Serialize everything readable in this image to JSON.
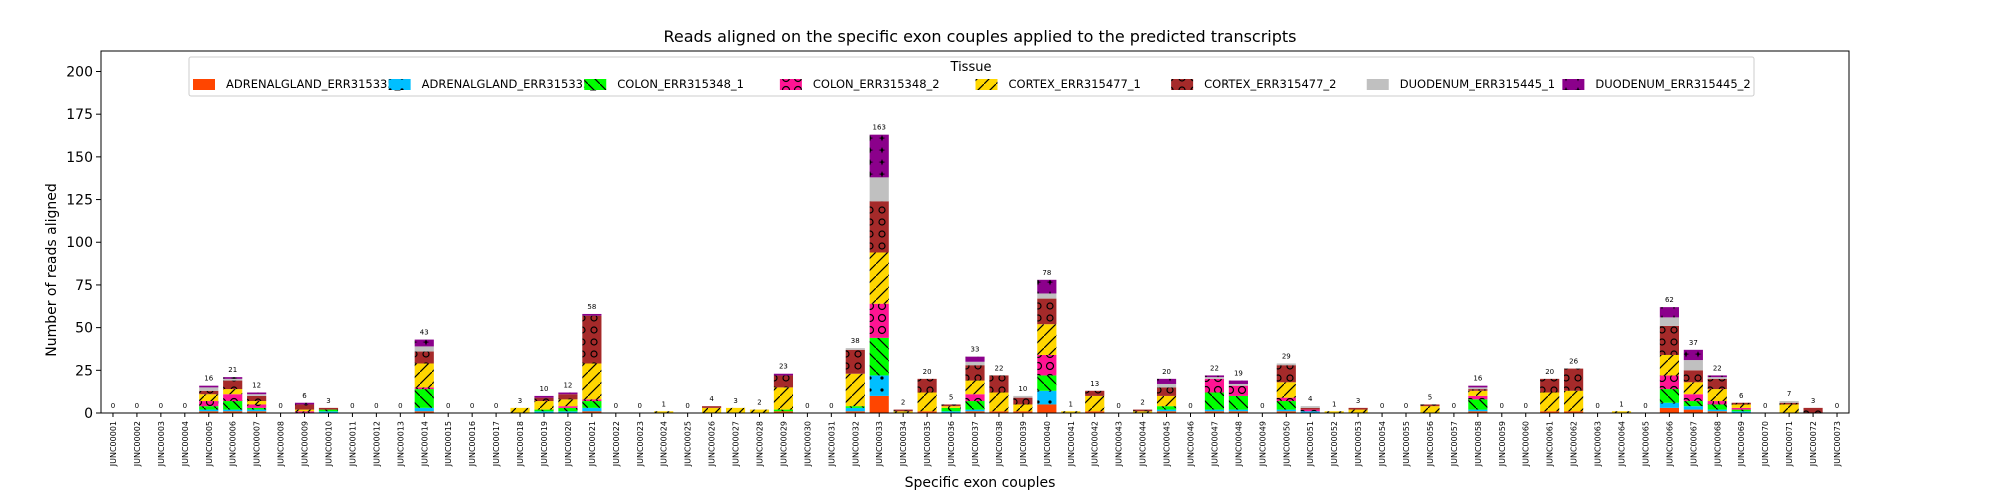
{
  "chart_data": {
    "type": "bar",
    "stacked": true,
    "title": "Reads aligned on the specific exon couples applied to the predicted transcripts",
    "xlabel": "Specific exon couples",
    "ylabel": "Number of reads aligned",
    "ylim": [
      0,
      212
    ],
    "yticks": [
      0,
      25,
      50,
      75,
      100,
      125,
      150,
      175,
      200
    ],
    "grid": false,
    "legend": {
      "title": "Tissue",
      "placement": "top",
      "columns": 8
    },
    "categories": [
      "JUNC00001",
      "JUNC00002",
      "JUNC00003",
      "JUNC00004",
      "JUNC00005",
      "JUNC00006",
      "JUNC00007",
      "JUNC00008",
      "JUNC00009",
      "JUNC00010",
      "JUNC00011",
      "JUNC00012",
      "JUNC00013",
      "JUNC00014",
      "JUNC00015",
      "JUNC00016",
      "JUNC00017",
      "JUNC00018",
      "JUNC00019",
      "JUNC00020",
      "JUNC00021",
      "JUNC00022",
      "JUNC00023",
      "JUNC00024",
      "JUNC00025",
      "JUNC00026",
      "JUNC00027",
      "JUNC00028",
      "JUNC00029",
      "JUNC00030",
      "JUNC00031",
      "JUNC00032",
      "JUNC00033",
      "JUNC00034",
      "JUNC00035",
      "JUNC00036",
      "JUNC00037",
      "JUNC00038",
      "JUNC00039",
      "JUNC00040",
      "JUNC00041",
      "JUNC00042",
      "JUNC00043",
      "JUNC00044",
      "JUNC00045",
      "JUNC00046",
      "JUNC00047",
      "JUNC00048",
      "JUNC00049",
      "JUNC00050",
      "JUNC00051",
      "JUNC00052",
      "JUNC00053",
      "JUNC00054",
      "JUNC00055",
      "JUNC00056",
      "JUNC00057",
      "JUNC00058",
      "JUNC00059",
      "JUNC00060",
      "JUNC00061",
      "JUNC00062",
      "JUNC00063",
      "JUNC00064",
      "JUNC00065",
      "JUNC00066",
      "JUNC00067",
      "JUNC00068",
      "JUNC00069",
      "JUNC00070",
      "JUNC00071",
      "JUNC00072",
      "JUNC00073"
    ],
    "totals": [
      0,
      0,
      0,
      0,
      16,
      21,
      12,
      0,
      6,
      3,
      0,
      0,
      0,
      43,
      0,
      0,
      0,
      3,
      10,
      12,
      58,
      0,
      0,
      1,
      0,
      4,
      3,
      2,
      23,
      0,
      0,
      38,
      163,
      2,
      20,
      5,
      33,
      22,
      10,
      78,
      1,
      13,
      0,
      2,
      20,
      0,
      22,
      19,
      0,
      29,
      4,
      1,
      3,
      0,
      0,
      5,
      0,
      16,
      0,
      0,
      20,
      26,
      0,
      1,
      0,
      62,
      37,
      22,
      6,
      0,
      7,
      3,
      0
    ],
    "series": [
      {
        "name": "ADRENALGLAND_ERR315335_1",
        "color": "#ff4500",
        "hatch": "none",
        "values": [
          0,
          0,
          0,
          0,
          1,
          1,
          1,
          0,
          0,
          0,
          0,
          0,
          0,
          1,
          0,
          0,
          0,
          0,
          0,
          0,
          1,
          0,
          0,
          0,
          0,
          0,
          0,
          0,
          1,
          0,
          0,
          1,
          10,
          0,
          1,
          0,
          1,
          1,
          1,
          5,
          0,
          1,
          0,
          0,
          1,
          0,
          1,
          1,
          0,
          1,
          0,
          0,
          0,
          0,
          0,
          0,
          0,
          1,
          0,
          0,
          1,
          1,
          0,
          0,
          0,
          3,
          2,
          1,
          0,
          0,
          0,
          0,
          0
        ]
      },
      {
        "name": "ADRENALGLAND_ERR315335_2",
        "color": "#00bfff",
        "hatch": "dots",
        "values": [
          0,
          0,
          0,
          0,
          1,
          1,
          1,
          0,
          0,
          1,
          0,
          0,
          0,
          2,
          0,
          0,
          0,
          0,
          1,
          1,
          2,
          0,
          0,
          0,
          0,
          0,
          0,
          0,
          0,
          0,
          0,
          2,
          12,
          0,
          0,
          1,
          1,
          0,
          0,
          8,
          0,
          0,
          0,
          0,
          1,
          0,
          1,
          1,
          0,
          1,
          1,
          0,
          0,
          0,
          0,
          0,
          0,
          1,
          0,
          0,
          0,
          0,
          0,
          0,
          0,
          3,
          2,
          1,
          1,
          0,
          0,
          0,
          0
        ]
      },
      {
        "name": "COLON_ERR315348_1",
        "color": "#00ff00",
        "hatch": "backslash",
        "values": [
          0,
          0,
          0,
          0,
          2,
          5,
          1,
          0,
          0,
          1,
          0,
          0,
          0,
          11,
          0,
          0,
          0,
          0,
          1,
          2,
          4,
          0,
          0,
          0,
          0,
          0,
          0,
          0,
          1,
          0,
          0,
          1,
          22,
          0,
          0,
          2,
          5,
          0,
          0,
          9,
          0,
          0,
          0,
          0,
          2,
          0,
          10,
          8,
          0,
          5,
          0,
          0,
          0,
          0,
          0,
          0,
          0,
          6,
          0,
          0,
          0,
          0,
          0,
          0,
          0,
          8,
          3,
          3,
          1,
          0,
          0,
          0,
          0
        ]
      },
      {
        "name": "COLON_ERR315348_2",
        "color": "#ff1493",
        "hatch": "rings",
        "values": [
          0,
          0,
          0,
          0,
          3,
          4,
          2,
          0,
          1,
          0,
          0,
          0,
          0,
          1,
          0,
          0,
          0,
          0,
          0,
          1,
          1,
          0,
          0,
          0,
          0,
          0,
          0,
          0,
          0,
          0,
          0,
          0,
          20,
          0,
          0,
          0,
          4,
          0,
          0,
          12,
          0,
          0,
          0,
          0,
          0,
          0,
          8,
          6,
          0,
          2,
          1,
          0,
          0,
          0,
          0,
          0,
          0,
          2,
          0,
          0,
          0,
          0,
          0,
          0,
          0,
          8,
          4,
          2,
          1,
          0,
          0,
          0,
          0
        ]
      },
      {
        "name": "CORTEX_ERR315477_1",
        "color": "#ffd700",
        "hatch": "slash",
        "values": [
          0,
          0,
          0,
          0,
          4,
          3,
          2,
          0,
          1,
          0,
          0,
          0,
          0,
          14,
          0,
          0,
          0,
          3,
          5,
          4,
          21,
          0,
          0,
          1,
          0,
          3,
          3,
          2,
          13,
          0,
          0,
          19,
          30,
          1,
          11,
          1,
          8,
          11,
          4,
          18,
          1,
          9,
          0,
          1,
          6,
          0,
          0,
          0,
          0,
          9,
          0,
          1,
          2,
          0,
          0,
          4,
          0,
          3,
          0,
          0,
          11,
          12,
          0,
          1,
          0,
          12,
          7,
          7,
          2,
          0,
          5,
          0,
          0
        ]
      },
      {
        "name": "CORTEX_ERR315477_2",
        "color": "#a52a2a",
        "hatch": "circles",
        "values": [
          0,
          0,
          0,
          0,
          2,
          5,
          3,
          0,
          3,
          1,
          0,
          0,
          0,
          7,
          0,
          0,
          0,
          0,
          2,
          3,
          28,
          0,
          0,
          0,
          0,
          1,
          0,
          0,
          7,
          0,
          0,
          14,
          30,
          1,
          8,
          1,
          9,
          10,
          4,
          15,
          0,
          3,
          0,
          1,
          5,
          0,
          0,
          0,
          0,
          10,
          1,
          0,
          1,
          0,
          0,
          1,
          0,
          1,
          0,
          0,
          8,
          13,
          0,
          0,
          0,
          17,
          7,
          6,
          1,
          0,
          1,
          3,
          0
        ]
      },
      {
        "name": "DUODENUM_ERR315445_1",
        "color": "#c0c0c0",
        "hatch": "none",
        "values": [
          0,
          0,
          0,
          0,
          2,
          1,
          1,
          0,
          0,
          0,
          0,
          0,
          0,
          3,
          0,
          0,
          0,
          0,
          0,
          0,
          0,
          0,
          0,
          0,
          0,
          0,
          0,
          0,
          0,
          0,
          0,
          1,
          14,
          0,
          0,
          0,
          2,
          0,
          1,
          3,
          0,
          0,
          0,
          0,
          2,
          0,
          1,
          1,
          0,
          1,
          1,
          0,
          0,
          0,
          0,
          0,
          0,
          1,
          0,
          0,
          0,
          0,
          0,
          0,
          0,
          5,
          6,
          1,
          0,
          0,
          1,
          0,
          0
        ]
      },
      {
        "name": "DUODENUM_ERR315445_2",
        "color": "#8b008b",
        "hatch": "stars",
        "values": [
          0,
          0,
          0,
          0,
          1,
          1,
          1,
          0,
          1,
          0,
          0,
          0,
          0,
          4,
          0,
          0,
          0,
          0,
          1,
          1,
          1,
          0,
          0,
          0,
          0,
          0,
          0,
          0,
          1,
          0,
          0,
          0,
          25,
          0,
          0,
          0,
          3,
          0,
          0,
          8,
          0,
          0,
          0,
          0,
          3,
          0,
          1,
          2,
          0,
          0,
          0,
          0,
          0,
          0,
          0,
          0,
          0,
          1,
          0,
          0,
          0,
          0,
          0,
          0,
          0,
          6,
          6,
          1,
          0,
          0,
          0,
          0,
          0
        ]
      }
    ]
  }
}
